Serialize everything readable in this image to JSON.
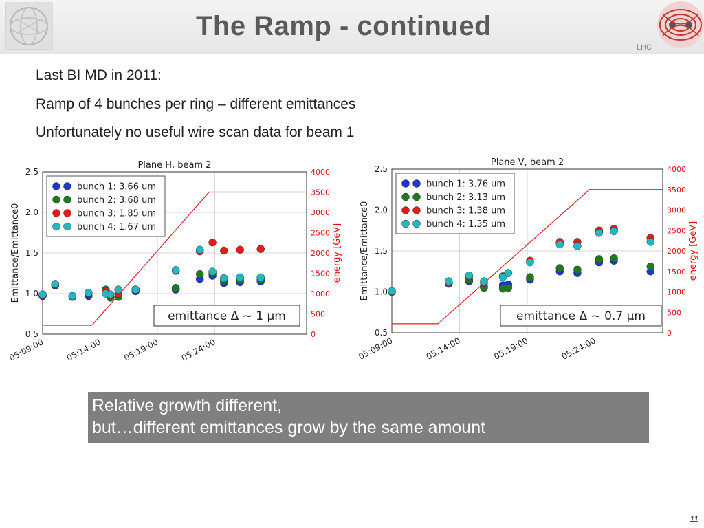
{
  "slide": {
    "title": "The Ramp - continued",
    "logo_right_text": "LHC",
    "bullets": [
      "Last BI MD in 2011:",
      "Ramp of 4 bunches per ring – different emittances",
      "Unfortunately no useful wire scan data for beam 1"
    ],
    "caption_lines": [
      "Relative growth different,",
      "but…different emittances grow by the same amount"
    ],
    "page_number": "11"
  },
  "chart_data": [
    {
      "type": "scatter",
      "title": "Plane H, beam 2",
      "ylabel": "Emittance/Emittance0",
      "y2label": "energy [GeV]",
      "ylim": [
        0.5,
        2.5
      ],
      "y2lim": [
        0,
        4000
      ],
      "yticks": [
        "0.5",
        "1.0",
        "1.5",
        "2.0",
        "2.5"
      ],
      "y2ticks": [
        "0",
        "500",
        "1000",
        "1500",
        "2000",
        "2500",
        "3000",
        "3500",
        "4000"
      ],
      "xlim": [
        0,
        23
      ],
      "xticks": [
        {
          "x": 0,
          "label": "05:09:00"
        },
        {
          "x": 5,
          "label": "05:14:00"
        },
        {
          "x": 10,
          "label": "05:19:00"
        },
        {
          "x": 15,
          "label": "05:24:00"
        }
      ],
      "annotation": "emittance Δ ~ 1 µm",
      "energy": {
        "x": [
          0,
          4.3,
          14.5,
          23
        ],
        "y": [
          220,
          220,
          3500,
          3500
        ]
      },
      "series": [
        {
          "name": "bunch 1: 3.66 um",
          "color": "#1f36d6",
          "x": [
            0,
            1.1,
            2.6,
            4.0,
            5.5,
            5.9,
            6.6,
            8.1,
            11.6,
            13.7,
            14.8,
            15.8,
            17.2,
            19.0
          ],
          "y": [
            0.97,
            1.1,
            0.96,
            0.97,
            1.03,
            0.96,
            0.96,
            1.03,
            1.05,
            1.18,
            1.22,
            1.13,
            1.14,
            1.15
          ]
        },
        {
          "name": "bunch 2: 3.68 um",
          "color": "#1d7a1d",
          "x": [
            0,
            1.1,
            2.6,
            4.0,
            5.5,
            5.9,
            6.6,
            8.1,
            11.6,
            13.7,
            14.8,
            15.8,
            17.2,
            19.0
          ],
          "y": [
            0.98,
            1.11,
            0.97,
            1.0,
            1.05,
            0.95,
            0.96,
            1.05,
            1.07,
            1.24,
            1.25,
            1.16,
            1.17,
            1.17
          ]
        },
        {
          "name": "bunch 3: 1.85 um",
          "color": "#e31b1b",
          "x": [
            0,
            1.1,
            2.6,
            4.0,
            5.5,
            5.9,
            6.6,
            8.1,
            11.6,
            13.7,
            14.8,
            15.8,
            17.2,
            19.0
          ],
          "y": [
            0.98,
            1.11,
            0.97,
            1.01,
            1.03,
            0.98,
            1.0,
            1.05,
            1.28,
            1.52,
            1.63,
            1.53,
            1.54,
            1.55
          ]
        },
        {
          "name": "bunch 4: 1.67 um",
          "color": "#22b8c2",
          "x": [
            0,
            1.1,
            2.6,
            4.0,
            5.5,
            5.9,
            6.6,
            8.1,
            11.6,
            13.7,
            14.8,
            15.8,
            17.2,
            19.0
          ],
          "y": [
            0.99,
            1.12,
            0.97,
            1.01,
            1.0,
            0.99,
            1.05,
            1.05,
            1.29,
            1.54,
            1.27,
            1.19,
            1.2,
            1.2
          ]
        }
      ]
    },
    {
      "type": "scatter",
      "title": "Plane V, beam 2",
      "ylabel": "Emittance/Emittance0",
      "y2label": "energy [GeV]",
      "ylim": [
        0.5,
        2.5
      ],
      "y2lim": [
        0,
        4000
      ],
      "yticks": [
        "0.5",
        "1.0",
        "1.5",
        "2.0",
        "2.5"
      ],
      "y2ticks": [
        "0",
        "500",
        "1000",
        "1500",
        "2000",
        "2500",
        "3000",
        "3500",
        "4000"
      ],
      "xlim": [
        0,
        20
      ],
      "xticks": [
        {
          "x": 0,
          "label": "05:09:00"
        },
        {
          "x": 5,
          "label": "05:14:00"
        },
        {
          "x": 10,
          "label": "05:19:00"
        },
        {
          "x": 15,
          "label": "05:24:00"
        }
      ],
      "annotation": "emittance Δ ~ 0.7 µm",
      "energy": {
        "x": [
          0,
          3.4,
          14.6,
          20
        ],
        "y": [
          220,
          220,
          3500,
          3500
        ]
      },
      "series": [
        {
          "name": "bunch 1: 3.76 um",
          "color": "#1f36d6",
          "x": [
            0,
            4.2,
            5.7,
            6.8,
            8.2,
            8.6,
            10.2,
            12.4,
            13.7,
            15.3,
            16.4,
            19.1
          ],
          "y": [
            1.0,
            1.1,
            1.13,
            1.07,
            1.08,
            1.09,
            1.15,
            1.25,
            1.23,
            1.36,
            1.38,
            1.25
          ]
        },
        {
          "name": "bunch 2: 3.13 um",
          "color": "#1d7a1d",
          "x": [
            0,
            4.2,
            5.7,
            6.8,
            8.2,
            8.6,
            10.2,
            12.4,
            13.7,
            15.3,
            16.4,
            19.1
          ],
          "y": [
            1.0,
            1.11,
            1.15,
            1.05,
            1.04,
            1.05,
            1.18,
            1.29,
            1.27,
            1.4,
            1.41,
            1.31
          ]
        },
        {
          "name": "bunch 3: 1.38 um",
          "color": "#e31b1b",
          "x": [
            0,
            4.2,
            5.7,
            6.8,
            8.2,
            8.6,
            10.2,
            12.4,
            13.7,
            15.3,
            16.4,
            19.1
          ],
          "y": [
            1.0,
            1.11,
            1.19,
            1.11,
            1.19,
            1.23,
            1.38,
            1.61,
            1.61,
            1.75,
            1.77,
            1.66
          ]
        },
        {
          "name": "bunch 4: 1.35 um",
          "color": "#22b8c2",
          "x": [
            0,
            4.2,
            5.7,
            6.8,
            8.2,
            8.6,
            10.2,
            12.4,
            13.7,
            15.3,
            16.4,
            19.1
          ],
          "y": [
            1.01,
            1.13,
            1.2,
            1.13,
            1.18,
            1.23,
            1.36,
            1.58,
            1.56,
            1.72,
            1.74,
            1.61
          ]
        }
      ]
    }
  ]
}
